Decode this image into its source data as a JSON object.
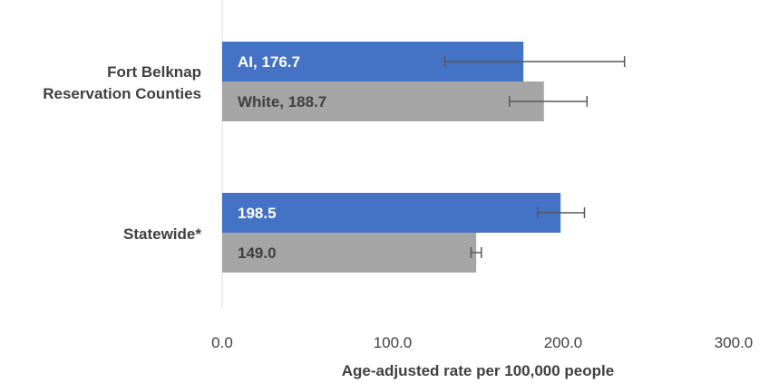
{
  "chart_data": {
    "type": "bar",
    "orientation": "horizontal",
    "categories": [
      "Fort Belknap Reservation Counties",
      "Statewide*"
    ],
    "category_label_lines": [
      [
        "Fort Belknap",
        "Reservation Counties"
      ],
      [
        "Statewide*"
      ]
    ],
    "series": [
      {
        "color": "#4472C4",
        "label_color": "#ffffff",
        "values": [
          176.7,
          198.5
        ],
        "error_low": [
          130.5,
          185.0
        ],
        "error_high": [
          236.0,
          212.5
        ],
        "data_labels": [
          "AI, 176.7",
          "198.5"
        ]
      },
      {
        "color": "#A5A5A5",
        "label_color": "#404040",
        "values": [
          188.7,
          149.0
        ],
        "error_low": [
          168.5,
          146.0
        ],
        "error_high": [
          214.0,
          152.0
        ],
        "data_labels": [
          "White, 188.7",
          "149.0"
        ]
      }
    ],
    "xlim": [
      0,
      300
    ],
    "xticks": [
      "0.0",
      "100.0",
      "200.0",
      "300.0"
    ],
    "xlabel": "Age-adjusted rate per 100,000 people",
    "grid": false,
    "legend": "none"
  }
}
